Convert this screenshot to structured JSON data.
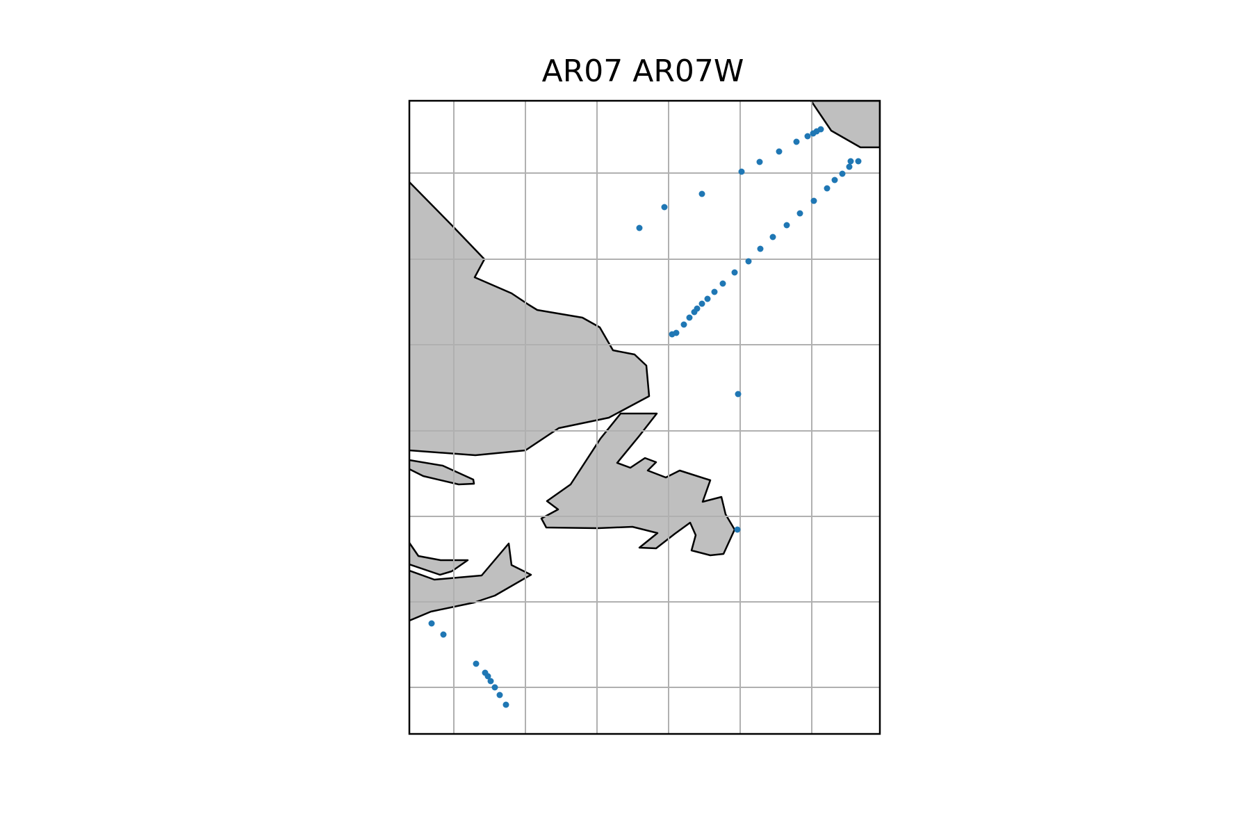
{
  "map": {
    "title": "AR07 AR07W",
    "colors": {
      "land": "#bfbfbf",
      "coastline": "#000000",
      "gridline": "#b0b0b0",
      "frame": "#000000",
      "station": "#1f77b4"
    },
    "gridlines": "on",
    "tick_labels": "none"
  }
}
